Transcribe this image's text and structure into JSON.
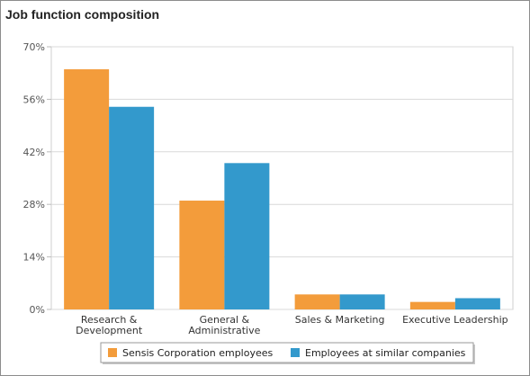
{
  "title": "Job function composition",
  "chart_data": {
    "type": "bar",
    "categories": [
      [
        "Research &",
        "Development"
      ],
      [
        "General &",
        "Administrative"
      ],
      [
        "Sales & Marketing"
      ],
      [
        "Executive Leadership"
      ]
    ],
    "series": [
      {
        "name": "Sensis Corporation employees",
        "color": "#f39c3b",
        "values": [
          64,
          29,
          4,
          2
        ]
      },
      {
        "name": "Employees at similar companies",
        "color": "#3399cc",
        "values": [
          54,
          39,
          4,
          3
        ]
      }
    ],
    "yticks": [
      "0%",
      "14%",
      "28%",
      "42%",
      "56%",
      "70%"
    ],
    "ylim": [
      0,
      70
    ],
    "grid": true,
    "legend": "bottom-center"
  }
}
